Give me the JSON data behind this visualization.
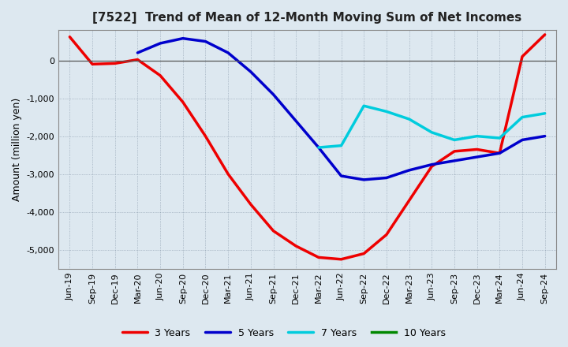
{
  "title": "[7522]  Trend of Mean of 12-Month Moving Sum of Net Incomes",
  "ylabel": "Amount (million yen)",
  "ylim": [
    -5500,
    800
  ],
  "yticks": [
    0,
    -1000,
    -2000,
    -3000,
    -4000,
    -5000
  ],
  "background_color": "#dde8f0",
  "plot_bg_color": "#dde8f0",
  "grid_color": "#aaaacc",
  "x_labels": [
    "Jun-19",
    "Sep-19",
    "Dec-19",
    "Mar-20",
    "Jun-20",
    "Sep-20",
    "Dec-20",
    "Mar-21",
    "Jun-21",
    "Sep-21",
    "Dec-21",
    "Mar-22",
    "Jun-22",
    "Sep-22",
    "Dec-22",
    "Mar-23",
    "Jun-23",
    "Sep-23",
    "Dec-23",
    "Mar-24",
    "Jun-24",
    "Sep-24"
  ],
  "series": {
    "3 Years": {
      "color": "#ee0000",
      "data_x": [
        0,
        1,
        2,
        3,
        4,
        5,
        6,
        7,
        8,
        9,
        10,
        11,
        12,
        13,
        14,
        15,
        16,
        17,
        18,
        19,
        20,
        21
      ],
      "data_y": [
        620,
        -100,
        -80,
        20,
        -400,
        -1100,
        -2000,
        -3000,
        -3800,
        -4500,
        -4900,
        -5200,
        -5250,
        -5100,
        -4600,
        -3700,
        -2800,
        -2400,
        -2350,
        -2450,
        100,
        680
      ]
    },
    "5 Years": {
      "color": "#0000cc",
      "data_x": [
        3,
        4,
        5,
        6,
        7,
        8,
        9,
        10,
        11,
        12,
        13,
        14,
        15,
        16,
        17,
        18,
        19,
        20,
        21
      ],
      "data_y": [
        200,
        450,
        580,
        500,
        200,
        -300,
        -900,
        -1600,
        -2300,
        -3050,
        -3150,
        -3100,
        -2900,
        -2750,
        -2650,
        -2550,
        -2450,
        -2100,
        -2000
      ]
    },
    "7 Years": {
      "color": "#00ccdd",
      "data_x": [
        11,
        12,
        13,
        14,
        15,
        16,
        17,
        18,
        19,
        20,
        21
      ],
      "data_y": [
        -2300,
        -2250,
        -1200,
        -1350,
        -1550,
        -1900,
        -2100,
        -2000,
        -2050,
        -1500,
        -1400
      ]
    },
    "10 Years": {
      "color": "#008800",
      "data_x": [],
      "data_y": []
    }
  },
  "legend_loc": "lower center",
  "legend_ncol": 4,
  "line_width": 2.5
}
